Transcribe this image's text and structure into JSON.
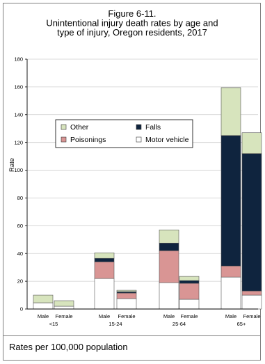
{
  "chart_data": {
    "type": "bar",
    "stacked": true,
    "title_lines": [
      "Figure 6-11.",
      "Unintentional injury death rates by age and",
      "type of injury, Oregon residents, 2017"
    ],
    "ylabel": "Rate",
    "ylim": [
      0,
      180
    ],
    "yticks": [
      0,
      20,
      40,
      60,
      80,
      100,
      120,
      140,
      160,
      180
    ],
    "grid": true,
    "groups": [
      "<15",
      "15-24",
      "25-64",
      "65+"
    ],
    "categories": [
      "Male",
      "Female",
      "Male",
      "Female",
      "Male",
      "Female",
      "Male",
      "Female"
    ],
    "series": [
      {
        "name": "Motor vehicle",
        "color": "#ffffff",
        "values": [
          4.5,
          2.0,
          22.0,
          7.5,
          19.0,
          7.0,
          23.0,
          10.0
        ]
      },
      {
        "name": "Poisonings",
        "color": "#d99594",
        "values": [
          0.0,
          0.0,
          12.0,
          4.0,
          23.0,
          11.5,
          8.0,
          3.0
        ]
      },
      {
        "name": "Falls",
        "color": "#0f243e",
        "values": [
          0.0,
          0.0,
          2.5,
          1.0,
          5.5,
          2.0,
          94.0,
          99.0
        ]
      },
      {
        "name": "Other",
        "color": "#d7e4bd",
        "values": [
          5.5,
          4.0,
          4.0,
          1.0,
          9.5,
          3.0,
          34.5,
          15.0
        ]
      }
    ],
    "legend": {
      "placement": "upper-left",
      "order": [
        "Other",
        "Falls",
        "Poisonings",
        "Motor vehicle"
      ]
    }
  },
  "footnote": "Rates per 100,000 population"
}
